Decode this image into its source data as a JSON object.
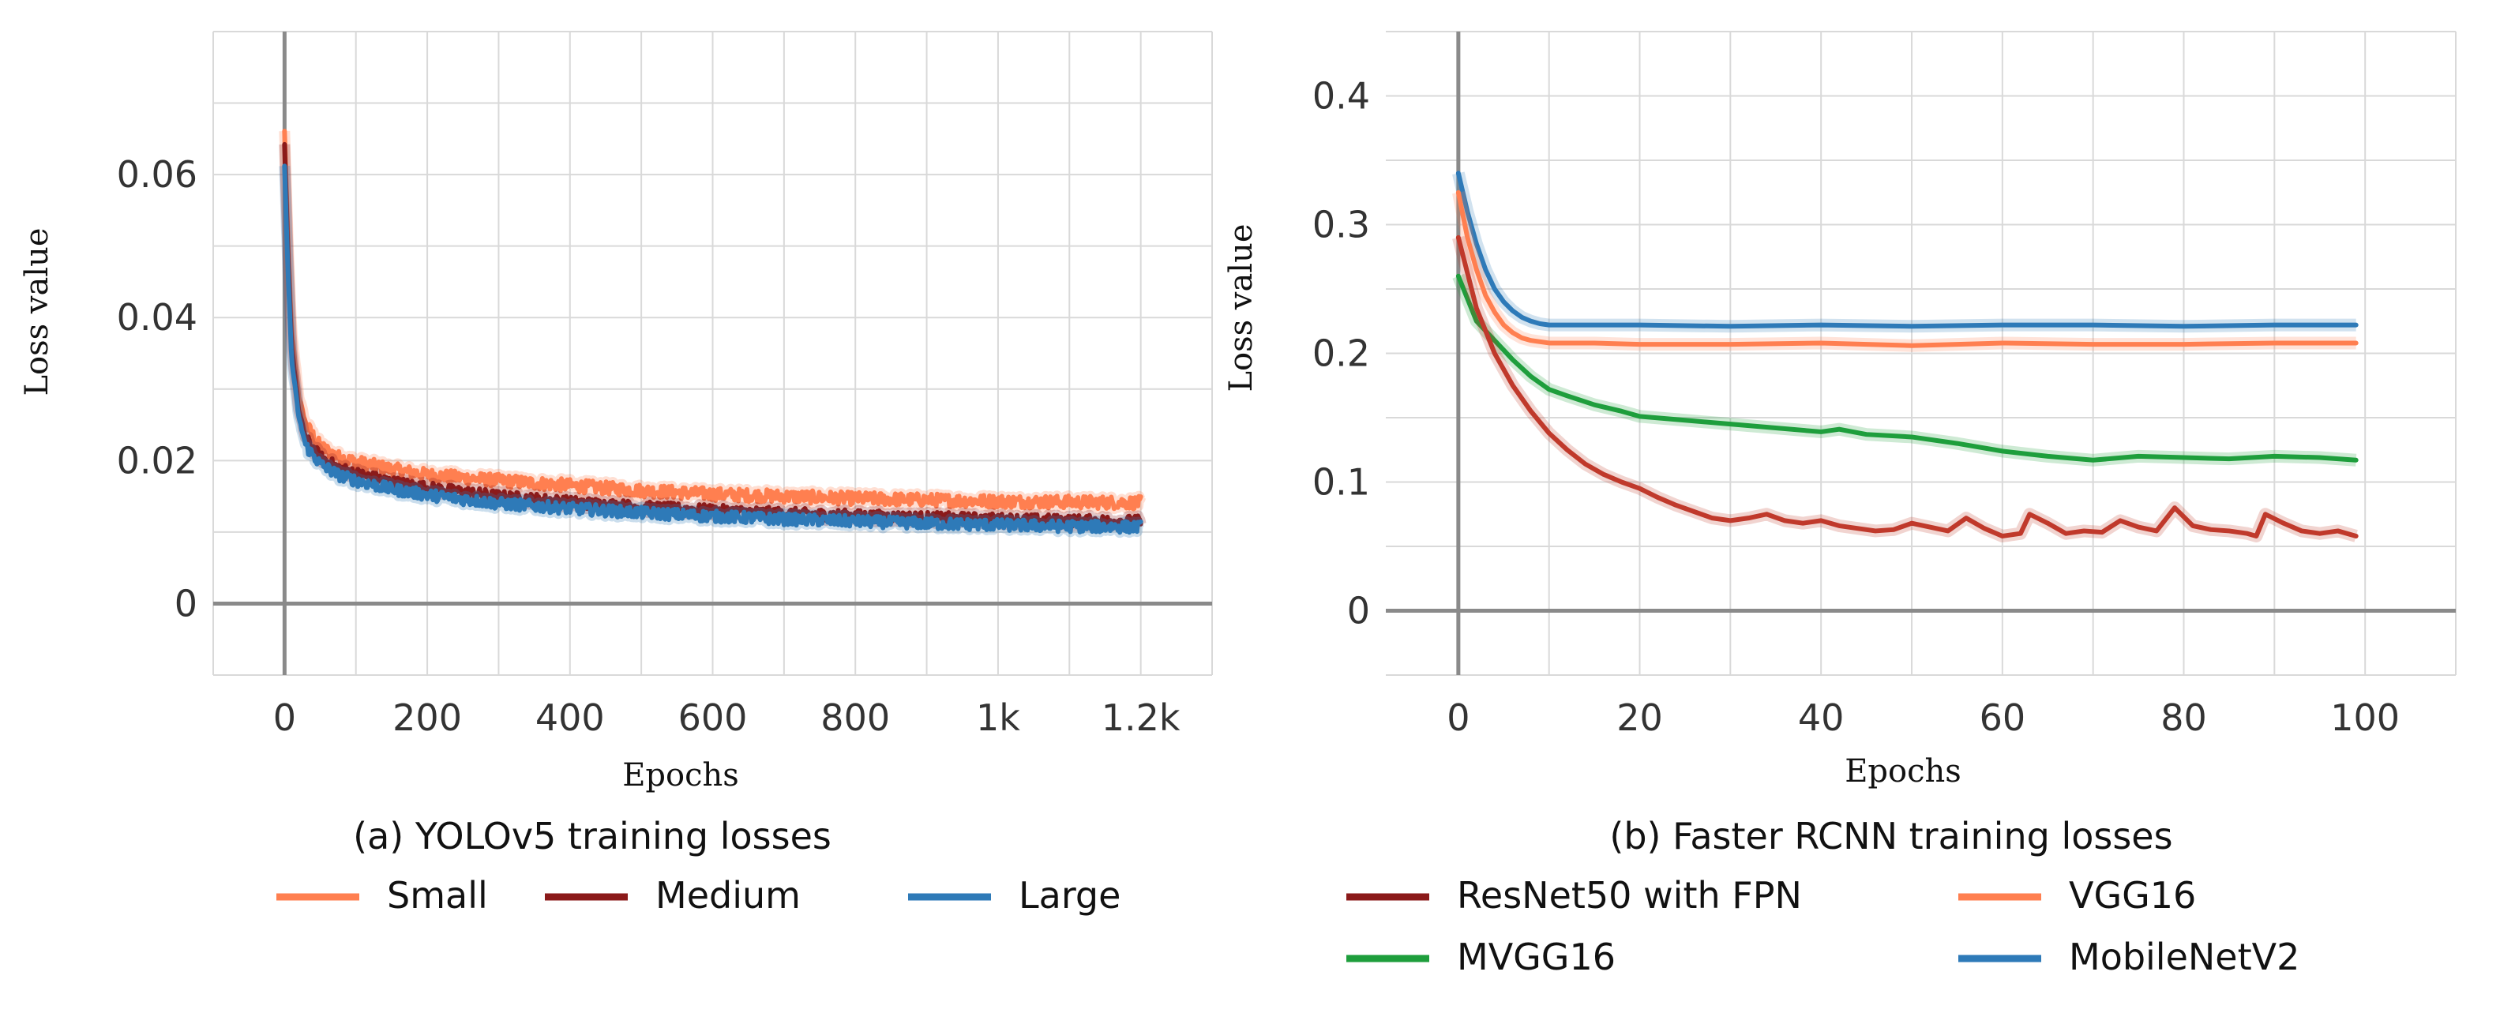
{
  "chart_data": [
    {
      "id": "a",
      "type": "line",
      "caption": "(a) YOLOv5 training losses",
      "xlabel": "Epochs",
      "ylabel": "Loss value",
      "xlim": [
        -100,
        1300
      ],
      "ylim": [
        -0.01,
        0.08
      ],
      "grid": true,
      "xticks": [
        {
          "v": 0,
          "label": "0"
        },
        {
          "v": 200,
          "label": "200"
        },
        {
          "v": 400,
          "label": "400"
        },
        {
          "v": 600,
          "label": "600"
        },
        {
          "v": 800,
          "label": "800"
        },
        {
          "v": 1000,
          "label": "1k"
        },
        {
          "v": 1200,
          "label": "1.2k"
        }
      ],
      "yticks": [
        {
          "v": 0,
          "label": "0"
        },
        {
          "v": 0.02,
          "label": "0.02"
        },
        {
          "v": 0.04,
          "label": "0.04"
        },
        {
          "v": 0.06,
          "label": "0.06"
        }
      ],
      "legend": [
        {
          "name": "Small",
          "color": "#ff7f50"
        },
        {
          "name": "Medium",
          "color": "#8b1a1a"
        },
        {
          "name": "Large",
          "color": "#2e7ab8"
        }
      ],
      "series": [
        {
          "name": "Small",
          "color": "#ff7f50",
          "noise": 0.0009,
          "x": [
            0,
            5,
            10,
            20,
            30,
            50,
            75,
            100,
            150,
            200,
            300,
            400,
            500,
            600,
            700,
            800,
            900,
            1000,
            1100,
            1200
          ],
          "y": [
            0.066,
            0.05,
            0.038,
            0.029,
            0.025,
            0.022,
            0.0205,
            0.0198,
            0.0188,
            0.018,
            0.0172,
            0.0165,
            0.0158,
            0.0153,
            0.015,
            0.0147,
            0.0145,
            0.0143,
            0.0142,
            0.0141
          ]
        },
        {
          "name": "Medium",
          "color": "#8b1a1a",
          "noise": 0.0008,
          "x": [
            0,
            5,
            10,
            20,
            30,
            50,
            75,
            100,
            150,
            200,
            300,
            400,
            500,
            600,
            700,
            800,
            900,
            1000,
            1100,
            1200
          ],
          "y": [
            0.064,
            0.048,
            0.036,
            0.027,
            0.023,
            0.0205,
            0.019,
            0.0182,
            0.017,
            0.0162,
            0.015,
            0.0142,
            0.0135,
            0.013,
            0.0126,
            0.0123,
            0.012,
            0.0118,
            0.0116,
            0.0115
          ]
        },
        {
          "name": "Large",
          "color": "#2e7ab8",
          "noise": 0.0008,
          "x": [
            0,
            5,
            10,
            20,
            30,
            50,
            75,
            100,
            150,
            200,
            300,
            400,
            500,
            600,
            700,
            800,
            900,
            1000,
            1100,
            1200
          ],
          "y": [
            0.061,
            0.046,
            0.034,
            0.026,
            0.022,
            0.0195,
            0.018,
            0.0172,
            0.016,
            0.0152,
            0.014,
            0.0133,
            0.0127,
            0.0122,
            0.0118,
            0.0115,
            0.0112,
            0.011,
            0.0108,
            0.0107
          ]
        }
      ]
    },
    {
      "id": "b",
      "type": "line",
      "caption": "(b) Faster RCNN training losses",
      "xlabel": "Epochs",
      "ylabel": "Loss value",
      "xlim": [
        -8,
        110
      ],
      "ylim": [
        -0.05,
        0.45
      ],
      "grid": true,
      "xticks": [
        {
          "v": 0,
          "label": "0"
        },
        {
          "v": 20,
          "label": "20"
        },
        {
          "v": 40,
          "label": "40"
        },
        {
          "v": 60,
          "label": "60"
        },
        {
          "v": 80,
          "label": "80"
        },
        {
          "v": 100,
          "label": "100"
        }
      ],
      "yticks": [
        {
          "v": 0,
          "label": "0"
        },
        {
          "v": 0.1,
          "label": "0.1"
        },
        {
          "v": 0.2,
          "label": "0.2"
        },
        {
          "v": 0.3,
          "label": "0.3"
        },
        {
          "v": 0.4,
          "label": "0.4"
        }
      ],
      "legend": [
        {
          "name": "ResNet50 with FPN",
          "color": "#8b1a1a"
        },
        {
          "name": "VGG16",
          "color": "#ff7f50"
        },
        {
          "name": "MVGG16",
          "color": "#1e9e3c"
        },
        {
          "name": "MobileNetV2",
          "color": "#2e7ab8"
        }
      ],
      "series": [
        {
          "name": "MobileNetV2",
          "color": "#2e7ab8",
          "noise": 0,
          "x": [
            0,
            1,
            2,
            3,
            4,
            5,
            6,
            7,
            8,
            9,
            10,
            15,
            20,
            30,
            40,
            50,
            60,
            70,
            80,
            90,
            99
          ],
          "y": [
            0.34,
            0.31,
            0.285,
            0.265,
            0.25,
            0.24,
            0.233,
            0.228,
            0.225,
            0.223,
            0.222,
            0.222,
            0.222,
            0.221,
            0.222,
            0.221,
            0.222,
            0.222,
            0.221,
            0.222,
            0.222
          ]
        },
        {
          "name": "VGG16",
          "color": "#ff7f50",
          "noise": 0,
          "x": [
            0,
            1,
            2,
            3,
            4,
            5,
            6,
            7,
            8,
            9,
            10,
            15,
            20,
            30,
            40,
            50,
            60,
            70,
            80,
            90,
            99
          ],
          "y": [
            0.325,
            0.29,
            0.265,
            0.245,
            0.232,
            0.222,
            0.216,
            0.212,
            0.21,
            0.209,
            0.208,
            0.208,
            0.207,
            0.207,
            0.208,
            0.206,
            0.208,
            0.207,
            0.207,
            0.208,
            0.208
          ]
        },
        {
          "name": "MVGG16",
          "color": "#1e9e3c",
          "noise": 0,
          "x": [
            0,
            2,
            4,
            6,
            8,
            10,
            12,
            15,
            18,
            20,
            25,
            30,
            35,
            40,
            42,
            45,
            50,
            55,
            60,
            65,
            70,
            75,
            80,
            85,
            90,
            95,
            99
          ],
          "y": [
            0.26,
            0.225,
            0.21,
            0.195,
            0.182,
            0.172,
            0.167,
            0.16,
            0.155,
            0.151,
            0.148,
            0.145,
            0.142,
            0.139,
            0.141,
            0.137,
            0.135,
            0.13,
            0.124,
            0.12,
            0.117,
            0.12,
            0.119,
            0.118,
            0.12,
            0.119,
            0.117
          ]
        },
        {
          "name": "ResNet50 with FPN",
          "color": "#c0392b",
          "noise": 0,
          "x": [
            0,
            2,
            4,
            6,
            8,
            10,
            12,
            14,
            16,
            18,
            20,
            22,
            24,
            26,
            28,
            30,
            32,
            34,
            36,
            38,
            40,
            42,
            44,
            46,
            48,
            50,
            52,
            54,
            56,
            58,
            60,
            62,
            63,
            65,
            67,
            69,
            71,
            73,
            75,
            77,
            79,
            81,
            83,
            85,
            87,
            88,
            89,
            91,
            93,
            95,
            97,
            99
          ],
          "y": [
            0.29,
            0.235,
            0.2,
            0.175,
            0.155,
            0.138,
            0.125,
            0.114,
            0.106,
            0.1,
            0.095,
            0.088,
            0.082,
            0.077,
            0.072,
            0.07,
            0.072,
            0.075,
            0.07,
            0.068,
            0.07,
            0.066,
            0.064,
            0.062,
            0.063,
            0.068,
            0.065,
            0.062,
            0.072,
            0.064,
            0.058,
            0.06,
            0.075,
            0.068,
            0.06,
            0.062,
            0.061,
            0.07,
            0.065,
            0.062,
            0.08,
            0.066,
            0.063,
            0.062,
            0.06,
            0.058,
            0.075,
            0.068,
            0.062,
            0.06,
            0.062,
            0.058
          ]
        }
      ]
    }
  ]
}
